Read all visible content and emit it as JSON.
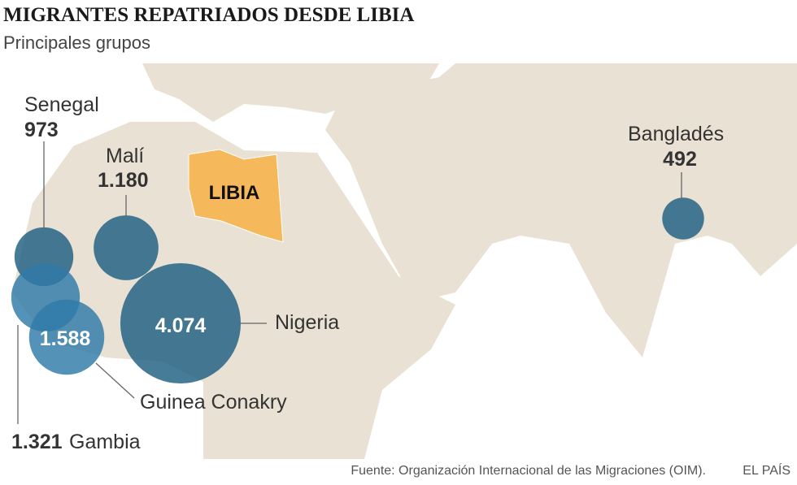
{
  "title": "MIGRANTES REPATRIADOS DESDE LIBIA",
  "subtitle": "Principales grupos",
  "region_label": "LIBIA",
  "groups": [
    {
      "name": "Senegal",
      "value": 973,
      "value_label": "973",
      "color": "#1f5f82"
    },
    {
      "name": "Malí",
      "value": 1180,
      "value_label": "1.180",
      "color": "#1f5f82"
    },
    {
      "name": "Gambia",
      "value": 1321,
      "value_label": "1.321",
      "color": "#2f7aa8"
    },
    {
      "name": "Guinea Conakry",
      "value": 1588,
      "value_label": "1.588",
      "color": "#2f7aa8"
    },
    {
      "name": "Nigeria",
      "value": 4074,
      "value_label": "4.074",
      "color": "#1f5f82"
    },
    {
      "name": "Bangladés",
      "value": 492,
      "value_label": "492",
      "color": "#1f5f82"
    }
  ],
  "source": "Fuente: Organización Internacional de las Migraciones (OIM).",
  "brand": "EL PAÍS"
}
